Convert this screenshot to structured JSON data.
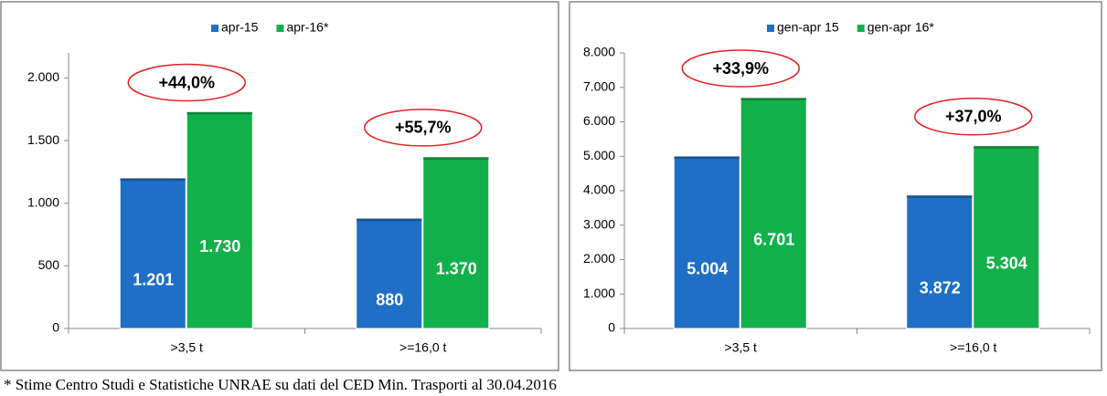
{
  "chart_data": [
    {
      "type": "bar",
      "categories": [
        ">3,5 t",
        ">=16,0 t"
      ],
      "series": [
        {
          "name": "apr-15",
          "color": "#1f6fc6",
          "values": [
            1201,
            880
          ],
          "value_labels": [
            "1.201",
            "880"
          ]
        },
        {
          "name": "apr-16*",
          "color": "#12b04a",
          "values": [
            1730,
            1370
          ],
          "value_labels": [
            "1.730",
            "1.370"
          ]
        }
      ],
      "annotations": [
        "+44,0%",
        "+55,7%"
      ],
      "ylim": [
        0,
        2200
      ],
      "yticks": [
        0,
        500,
        {
          "value": 1000,
          "label": "1.000"
        },
        {
          "value": 1500,
          "label": "1.500"
        },
        {
          "value": 2000,
          "label": "2.000"
        }
      ],
      "legend": "top"
    },
    {
      "type": "bar",
      "categories": [
        ">3,5 t",
        ">=16,0 t"
      ],
      "series": [
        {
          "name": "gen-apr 15",
          "color": "#1f6fc6",
          "values": [
            5004,
            3872
          ],
          "value_labels": [
            "5.004",
            "3.872"
          ]
        },
        {
          "name": "gen-apr 16*",
          "color": "#12b04a",
          "values": [
            6701,
            5304
          ],
          "value_labels": [
            "6.701",
            "5.304"
          ]
        }
      ],
      "annotations": [
        "+33,9%",
        "+37,0%"
      ],
      "ylim": [
        0,
        8000
      ],
      "yticks": [
        0,
        {
          "value": 1000,
          "label": "1.000"
        },
        {
          "value": 2000,
          "label": "2.000"
        },
        {
          "value": 3000,
          "label": "3.000"
        },
        {
          "value": 4000,
          "label": "4.000"
        },
        {
          "value": 5000,
          "label": "5.000"
        },
        {
          "value": 6000,
          "label": "6.000"
        },
        {
          "value": 7000,
          "label": "7.000"
        },
        {
          "value": 8000,
          "label": "8.000"
        }
      ],
      "legend": "top"
    }
  ],
  "footnote": "* Stime Centro Studi e Statistiche UNRAE su dati del CED Min. Trasporti al 30.04.2016"
}
